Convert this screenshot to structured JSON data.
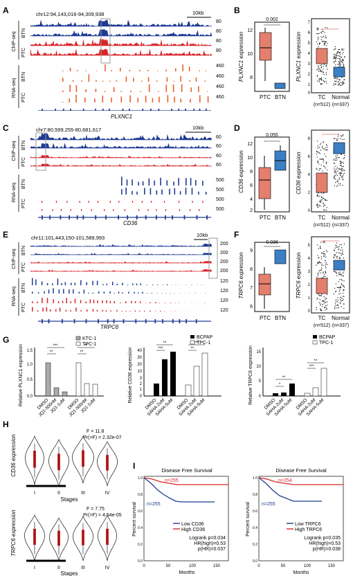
{
  "panels": {
    "A": {
      "letter": "A",
      "coords": "chr12:94,143,016-94,309,938",
      "scale": "10kb",
      "groups": [
        "ChIP-seq",
        "RNA-seq"
      ],
      "rows": [
        "BTN",
        "PTC",
        "BTN",
        "PTC"
      ],
      "chip_ticks": [
        "80",
        "80",
        "80",
        "80"
      ],
      "rna_ticks": [
        "460",
        "460",
        "460",
        "460"
      ],
      "gene": "PLXNC1"
    },
    "B": {
      "letter": "B",
      "left": {
        "ylabel": "PLXNC1 expression",
        "pvalue": "0.002",
        "xcats": [
          "PTC",
          "BTN"
        ],
        "yticks": [
          "12",
          "10",
          "8"
        ]
      },
      "right": {
        "ylabel": "PLXNC1 expression",
        "xcats": [
          "TC",
          "Normal"
        ],
        "ncounts": [
          "(n=512)",
          "(n=337)"
        ],
        "yticks": [
          "7",
          "6",
          "5",
          "4",
          "3",
          "2",
          "1",
          "0"
        ]
      }
    },
    "C": {
      "letter": "C",
      "coords": "chr7:80,599,255-80,681,617",
      "scale": "10kb",
      "groups": [
        "ChIP-seq",
        "RNA-seq"
      ],
      "rows": [
        "BTN",
        "PTC",
        "BTN",
        "PTC"
      ],
      "chip_ticks": [
        "60",
        "60",
        "60",
        "60"
      ],
      "rna_ticks": [
        "500",
        "500",
        "500",
        "500"
      ],
      "gene": "CD36"
    },
    "D": {
      "letter": "D",
      "left": {
        "ylabel": "CD36 expression",
        "pvalue": "0.055",
        "xcats": [
          "PTC",
          "BTN"
        ],
        "yticks": [
          "12",
          "10",
          "8",
          "6",
          "4",
          "2"
        ]
      },
      "right": {
        "ylabel": "CD36 expression",
        "xcats": [
          "TC",
          "Normal"
        ],
        "ncounts": [
          "(n=512)",
          "(n=337)"
        ],
        "yticks": [
          "8",
          "6",
          "4",
          "2",
          "0"
        ]
      }
    },
    "E": {
      "letter": "E",
      "coords": "chr11:101,443,150-101,589,993",
      "scale": "10kb",
      "groups": [
        "ChIP-seq",
        "RNA-seq"
      ],
      "rows": [
        "BTN",
        "PTC",
        "BTN",
        "PTC"
      ],
      "chip_ticks": [
        "200",
        "200",
        "200",
        "200"
      ],
      "rna_ticks": [
        "120",
        "120",
        "120",
        "120"
      ],
      "gene": "TRPC6"
    },
    "F": {
      "letter": "F",
      "left": {
        "ylabel": "TRPC6 expression",
        "pvalue": "0.036",
        "xcats": [
          "PTC",
          "BTN"
        ],
        "yticks": [
          "9",
          "8",
          "7",
          "6"
        ]
      },
      "right": {
        "ylabel": "TRPC6 expression",
        "xcats": [
          "TC",
          "Normal"
        ],
        "ncounts": [
          "(n=512)",
          "(n=337)"
        ],
        "yticks": [
          "5",
          "4",
          "3",
          "2",
          "1",
          "0"
        ]
      }
    },
    "G": {
      "letter": "G",
      "g1": {
        "ylabel": "Relative PLXNC1 expression",
        "legend": [
          "KTC-1",
          "TPC-1"
        ],
        "xcats": [
          "DMSO",
          "JQ1-500nM",
          "JQ1-1uM",
          "DMSO",
          "JQ1-500nM",
          "JQ1-1uM"
        ],
        "yticks": [
          "1.5",
          "1.0",
          "0.5",
          "0.0"
        ],
        "sig": [
          "***",
          "**",
          "**",
          "**"
        ]
      },
      "g2": {
        "ylabel": "Relative CD36 expression",
        "legend": [
          "BCPAP",
          "TPC-1"
        ],
        "xcats": [
          "DMSO",
          "SAHA-2uM",
          "SAHA-5uM",
          "DMSO",
          "SAHA-2uM",
          "SAHA-5uM"
        ],
        "yticks": [
          "40",
          "30",
          "20",
          "10",
          "3",
          "2",
          "1",
          "0"
        ],
        "sig": [
          "**",
          "***",
          "***",
          "**"
        ]
      },
      "g3": {
        "ylabel": "Relative TRPC6 expression",
        "legend": [
          "BCPAP",
          "TPC-1"
        ],
        "xcats": [
          "DMSO",
          "SAHA-2uM",
          "SAHA-5uM",
          "DMSO",
          "SAHA-2uM",
          "SAHA-5uM"
        ],
        "yticks": [
          "15",
          "10",
          "5",
          "0"
        ],
        "sig": [
          "**",
          "*",
          "**",
          "***"
        ]
      }
    },
    "H": {
      "letter": "H",
      "top": {
        "ylabel": "CD36 expression",
        "stat1": "F = 11.8",
        "stat2": "Pr(>F) = 2.32e-07",
        "xlabel": "Stages",
        "xcats": [
          "I",
          "II",
          "III",
          "IV"
        ]
      },
      "bottom": {
        "ylabel": "TRPC6 expression",
        "stat1": "F = 7.75",
        "stat2": "Pr(>F) = 4.54e-05",
        "xlabel": "Stages",
        "xcats": [
          "I",
          "II",
          "III",
          "IV"
        ]
      }
    },
    "I": {
      "letter": "I",
      "left": {
        "title": "Disease Free Survival",
        "ylabel": "Percent survival",
        "xlabel": "Months",
        "n_high": "n=255",
        "n_low": "n=255",
        "legend_low": "Low CD36",
        "legend_high": "High CD36",
        "stats": [
          "Logrank p=0.034",
          "HR(high)=0.53",
          "p(HR)=0.037"
        ],
        "xticks": [
          "0",
          "50",
          "100",
          "150"
        ],
        "yticks": [
          "1.0",
          "0.8",
          "0.6",
          "0.4",
          "0.2",
          "0.0"
        ]
      },
      "right": {
        "title": "Disease Free Survival",
        "ylabel": "Percent survival",
        "xlabel": "Months",
        "n_high": "n=254",
        "n_low": "n=255",
        "legend_low": "Low TRPC6",
        "legend_high": "High TRPC6",
        "stats": [
          "Logrank p=0.035",
          "HR(high)=0.53",
          "p(HR)=0.038"
        ],
        "xticks": [
          "0",
          "50",
          "100",
          "150"
        ],
        "yticks": [
          "1.0",
          "0.8",
          "0.6",
          "0.4",
          "0.2",
          "0.0"
        ]
      }
    }
  },
  "colors": {
    "blue": "#1f3a93",
    "red": "#d8262b",
    "orange": "#e8602a",
    "boxred": "#e57f6d",
    "boxblue": "#3b7fc4"
  }
}
